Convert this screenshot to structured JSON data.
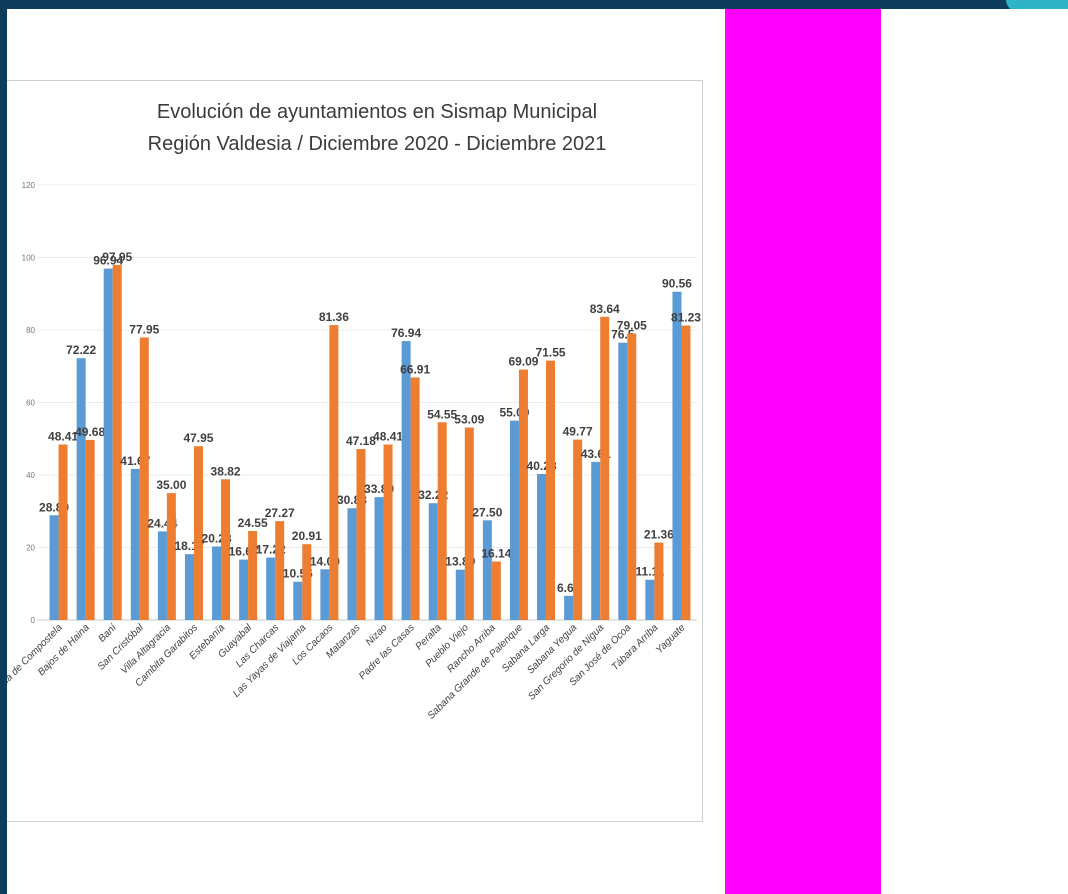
{
  "chart_data": {
    "type": "bar",
    "title": "Evolución de ayuntamientos en Sismap Municipal",
    "subtitle": "Región Valdesia / Diciembre 2020 - Diciembre 2021",
    "xlabel": "",
    "ylabel": "",
    "ylim": [
      0,
      120
    ],
    "yticks": [
      0,
      20,
      40,
      60,
      80,
      100,
      120
    ],
    "grid": true,
    "legend": "none",
    "categories": [
      "Azua de Compostela",
      "Bajos de Haina",
      "Baní",
      "San Cristóbal",
      "Villa Altagracia",
      "Cambita Garabitos",
      "Estebanía",
      "Guayabal",
      "Las Charcas",
      "Las Yayas de Viajama",
      "Los Cacaos",
      "Matanzas",
      "Nizao",
      "Padre las Casas",
      "Peralta",
      "Pueblo Viejo",
      "Rancho Arriba",
      "Sabana Grande de Palenque",
      "Sabana Larga",
      "Sabana Yegua",
      "San Gregorio de Nigua",
      "San José de Ocoa",
      "Tábara Arriba",
      "Yaguate"
    ],
    "series": [
      {
        "color": "#5b9bd5",
        "values": [
          28.89,
          72.22,
          96.94,
          41.67,
          24.44,
          18.17,
          20.28,
          16.67,
          17.22,
          10.56,
          14.0,
          30.83,
          33.89,
          76.94,
          32.22,
          13.89,
          27.5,
          55.0,
          40.28,
          6.67,
          43.61,
          76.5,
          11.11,
          90.56
        ],
        "labels": [
          "28.89",
          "72.22",
          "96.94",
          "41.67",
          "24.44",
          "18.17",
          "20.28",
          "16.67",
          "17.22",
          "10.56",
          "14.00",
          "30.83",
          "33.89",
          "76.94",
          "32.22",
          "13.89",
          "27.50",
          "55.00",
          "40.28",
          "6.67",
          "43.61",
          "76.5",
          "11.11",
          "90.56"
        ]
      },
      {
        "color": "#ed7d31",
        "values": [
          48.41,
          49.68,
          97.95,
          77.95,
          35.0,
          47.95,
          38.82,
          24.55,
          27.27,
          20.91,
          81.36,
          47.18,
          48.41,
          66.91,
          54.55,
          53.09,
          16.14,
          69.09,
          71.55,
          49.77,
          83.64,
          79.05,
          21.36,
          81.23
        ],
        "labels": [
          "48.41",
          "49.68",
          "97.95",
          "77.95",
          "35.00",
          "47.95",
          "38.82",
          "24.55",
          "27.27",
          "20.91",
          "81.36",
          "47.18",
          "48.41",
          "66.91",
          "54.55",
          "53.09",
          "16.14",
          "69.09",
          "71.55",
          "49.77",
          "83.64",
          "79.05",
          "21.36",
          "81.23"
        ]
      }
    ]
  }
}
